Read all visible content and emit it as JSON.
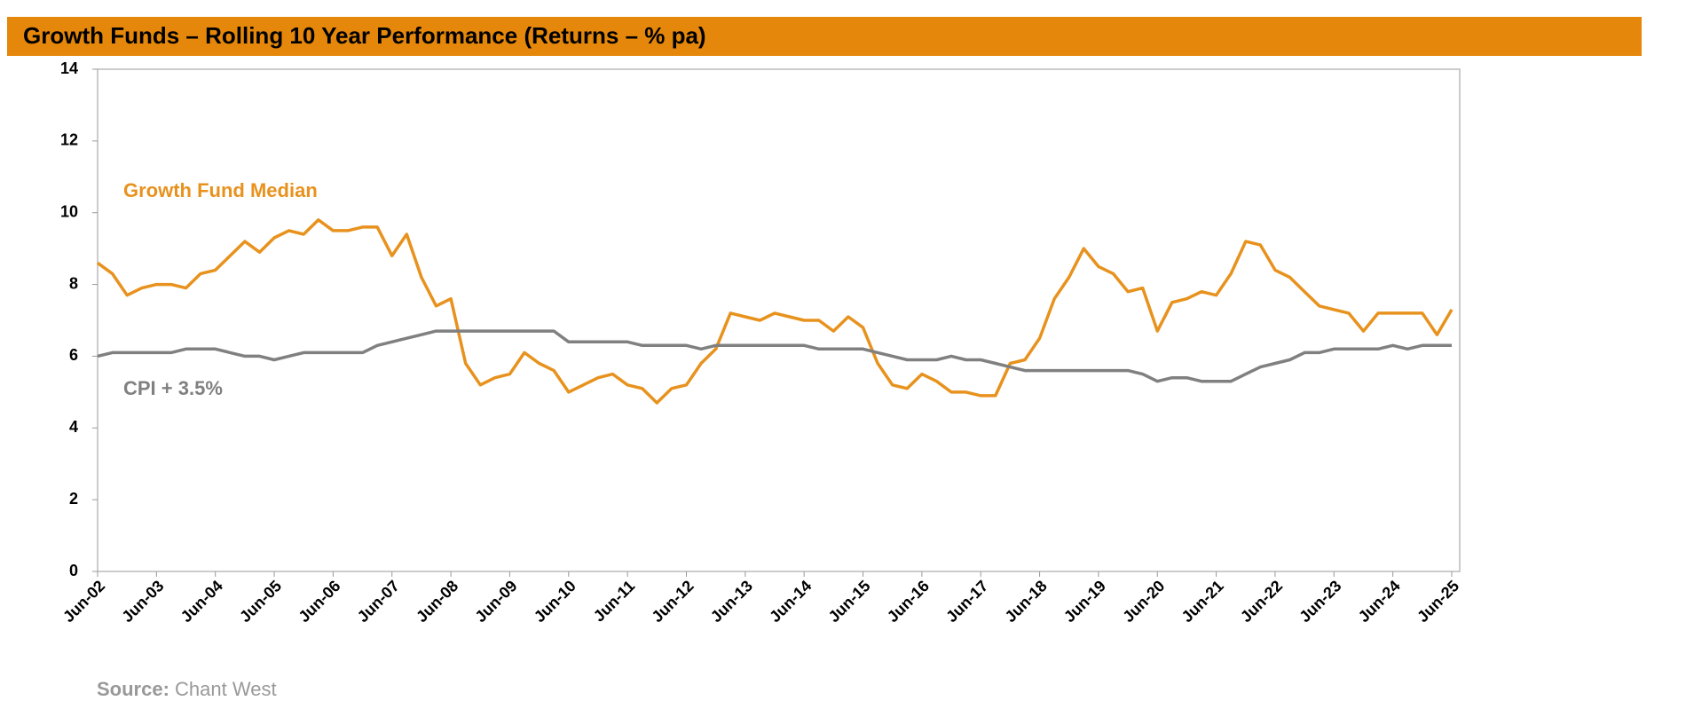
{
  "chart_data": {
    "type": "line",
    "title": "Growth Funds – Rolling 10 Year Performance (Returns – % pa)",
    "categories": [
      "Jun-02",
      null,
      null,
      null,
      "Jun-03",
      null,
      null,
      null,
      "Jun-04",
      null,
      null,
      null,
      "Jun-05",
      null,
      null,
      null,
      "Jun-06",
      null,
      null,
      null,
      "Jun-07",
      null,
      null,
      null,
      "Jun-08",
      null,
      null,
      null,
      "Jun-09",
      null,
      null,
      null,
      "Jun-10",
      null,
      null,
      null,
      "Jun-11",
      null,
      null,
      null,
      "Jun-12",
      null,
      null,
      null,
      "Jun-13",
      null,
      null,
      null,
      "Jun-14",
      null,
      null,
      null,
      "Jun-15",
      null,
      null,
      null,
      "Jun-16",
      null,
      null,
      null,
      "Jun-17",
      null,
      null,
      null,
      "Jun-18",
      null,
      null,
      null,
      "Jun-19",
      null,
      null,
      null,
      "Jun-20",
      null,
      null,
      null,
      "Jun-21",
      null,
      null,
      null,
      "Jun-22",
      null,
      null,
      null,
      "Jun-23",
      null,
      null,
      null,
      "Jun-24",
      null,
      null,
      null,
      "Jun-25"
    ],
    "series": [
      {
        "name": "Growth Fund Median",
        "color": "#e8921e",
        "values": [
          8.6,
          8.3,
          7.7,
          7.9,
          8.0,
          8.0,
          7.9,
          8.3,
          8.4,
          8.8,
          9.2,
          8.9,
          9.3,
          9.5,
          9.4,
          9.8,
          9.5,
          9.5,
          9.6,
          9.6,
          8.8,
          9.4,
          8.2,
          7.4,
          7.6,
          5.8,
          5.2,
          5.4,
          5.5,
          6.1,
          5.8,
          5.6,
          5.0,
          5.2,
          5.4,
          5.5,
          5.2,
          5.1,
          4.7,
          5.1,
          5.2,
          5.8,
          6.2,
          7.2,
          7.1,
          7.0,
          7.2,
          7.1,
          7.0,
          7.0,
          6.7,
          7.1,
          6.8,
          5.8,
          5.2,
          5.1,
          5.5,
          5.3,
          5.0,
          5.0,
          4.9,
          4.9,
          5.8,
          5.9,
          6.5,
          7.6,
          8.2,
          9.0,
          8.5,
          8.3,
          7.8,
          7.9,
          6.7,
          7.5,
          7.6,
          7.8,
          7.7,
          8.3,
          9.2,
          9.1,
          8.4,
          8.2,
          7.8,
          7.4,
          7.3,
          7.2,
          6.7,
          7.2,
          7.2,
          7.2,
          7.2,
          6.6,
          7.3
        ]
      },
      {
        "name": "CPI + 3.5%",
        "color": "#808080",
        "values": [
          6.0,
          6.1,
          6.1,
          6.1,
          6.1,
          6.1,
          6.2,
          6.2,
          6.2,
          6.1,
          6.0,
          6.0,
          5.9,
          6.0,
          6.1,
          6.1,
          6.1,
          6.1,
          6.1,
          6.3,
          6.4,
          6.5,
          6.6,
          6.7,
          6.7,
          6.7,
          6.7,
          6.7,
          6.7,
          6.7,
          6.7,
          6.7,
          6.4,
          6.4,
          6.4,
          6.4,
          6.4,
          6.3,
          6.3,
          6.3,
          6.3,
          6.2,
          6.3,
          6.3,
          6.3,
          6.3,
          6.3,
          6.3,
          6.3,
          6.2,
          6.2,
          6.2,
          6.2,
          6.1,
          6.0,
          5.9,
          5.9,
          5.9,
          6.0,
          5.9,
          5.9,
          5.8,
          5.7,
          5.6,
          5.6,
          5.6,
          5.6,
          5.6,
          5.6,
          5.6,
          5.6,
          5.5,
          5.3,
          5.4,
          5.4,
          5.3,
          5.3,
          5.3,
          5.5,
          5.7,
          5.8,
          5.9,
          6.1,
          6.1,
          6.2,
          6.2,
          6.2,
          6.2,
          6.3,
          6.2,
          6.3,
          6.3,
          6.3
        ]
      }
    ],
    "ylim": [
      0,
      14
    ],
    "yticks": [
      0,
      2,
      4,
      6,
      8,
      10,
      12,
      14
    ],
    "source_label": "Source:",
    "source": "Chant West"
  }
}
